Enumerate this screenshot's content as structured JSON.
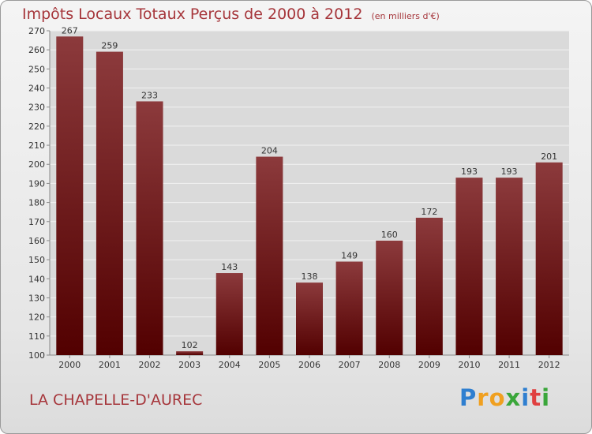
{
  "chart_data": {
    "type": "bar",
    "title": "Impôts Locaux Totaux Perçus de 2000 à 2012",
    "subtitle": "(en milliers d'€)",
    "categories": [
      "2000",
      "2001",
      "2002",
      "2003",
      "2004",
      "2005",
      "2006",
      "2007",
      "2008",
      "2009",
      "2010",
      "2011",
      "2012"
    ],
    "values": [
      267,
      259,
      233,
      102,
      143,
      204,
      138,
      149,
      160,
      172,
      193,
      193,
      201
    ],
    "ylim": [
      100,
      270
    ],
    "yticks": [
      100,
      110,
      120,
      130,
      140,
      150,
      160,
      170,
      180,
      190,
      200,
      210,
      220,
      230,
      240,
      250,
      260,
      270
    ],
    "xlabel": "",
    "ylabel": "",
    "grid": true,
    "colors": {
      "bar_top": "#8c3a3c",
      "bar_bottom": "#520000",
      "plot_bg": "#dadada",
      "grid": "#f2f2f2",
      "title": "#a6363b"
    }
  },
  "location_label": "LA CHAPELLE-D'AUREC",
  "brand": {
    "letters": [
      "P",
      "r",
      "o",
      "x",
      "i",
      "t",
      "i"
    ],
    "colors": [
      "#2f7fd0",
      "#f0a020",
      "#f0a020",
      "#3aa63a",
      "#2f7fd0",
      "#e04040",
      "#3aa63a"
    ]
  }
}
